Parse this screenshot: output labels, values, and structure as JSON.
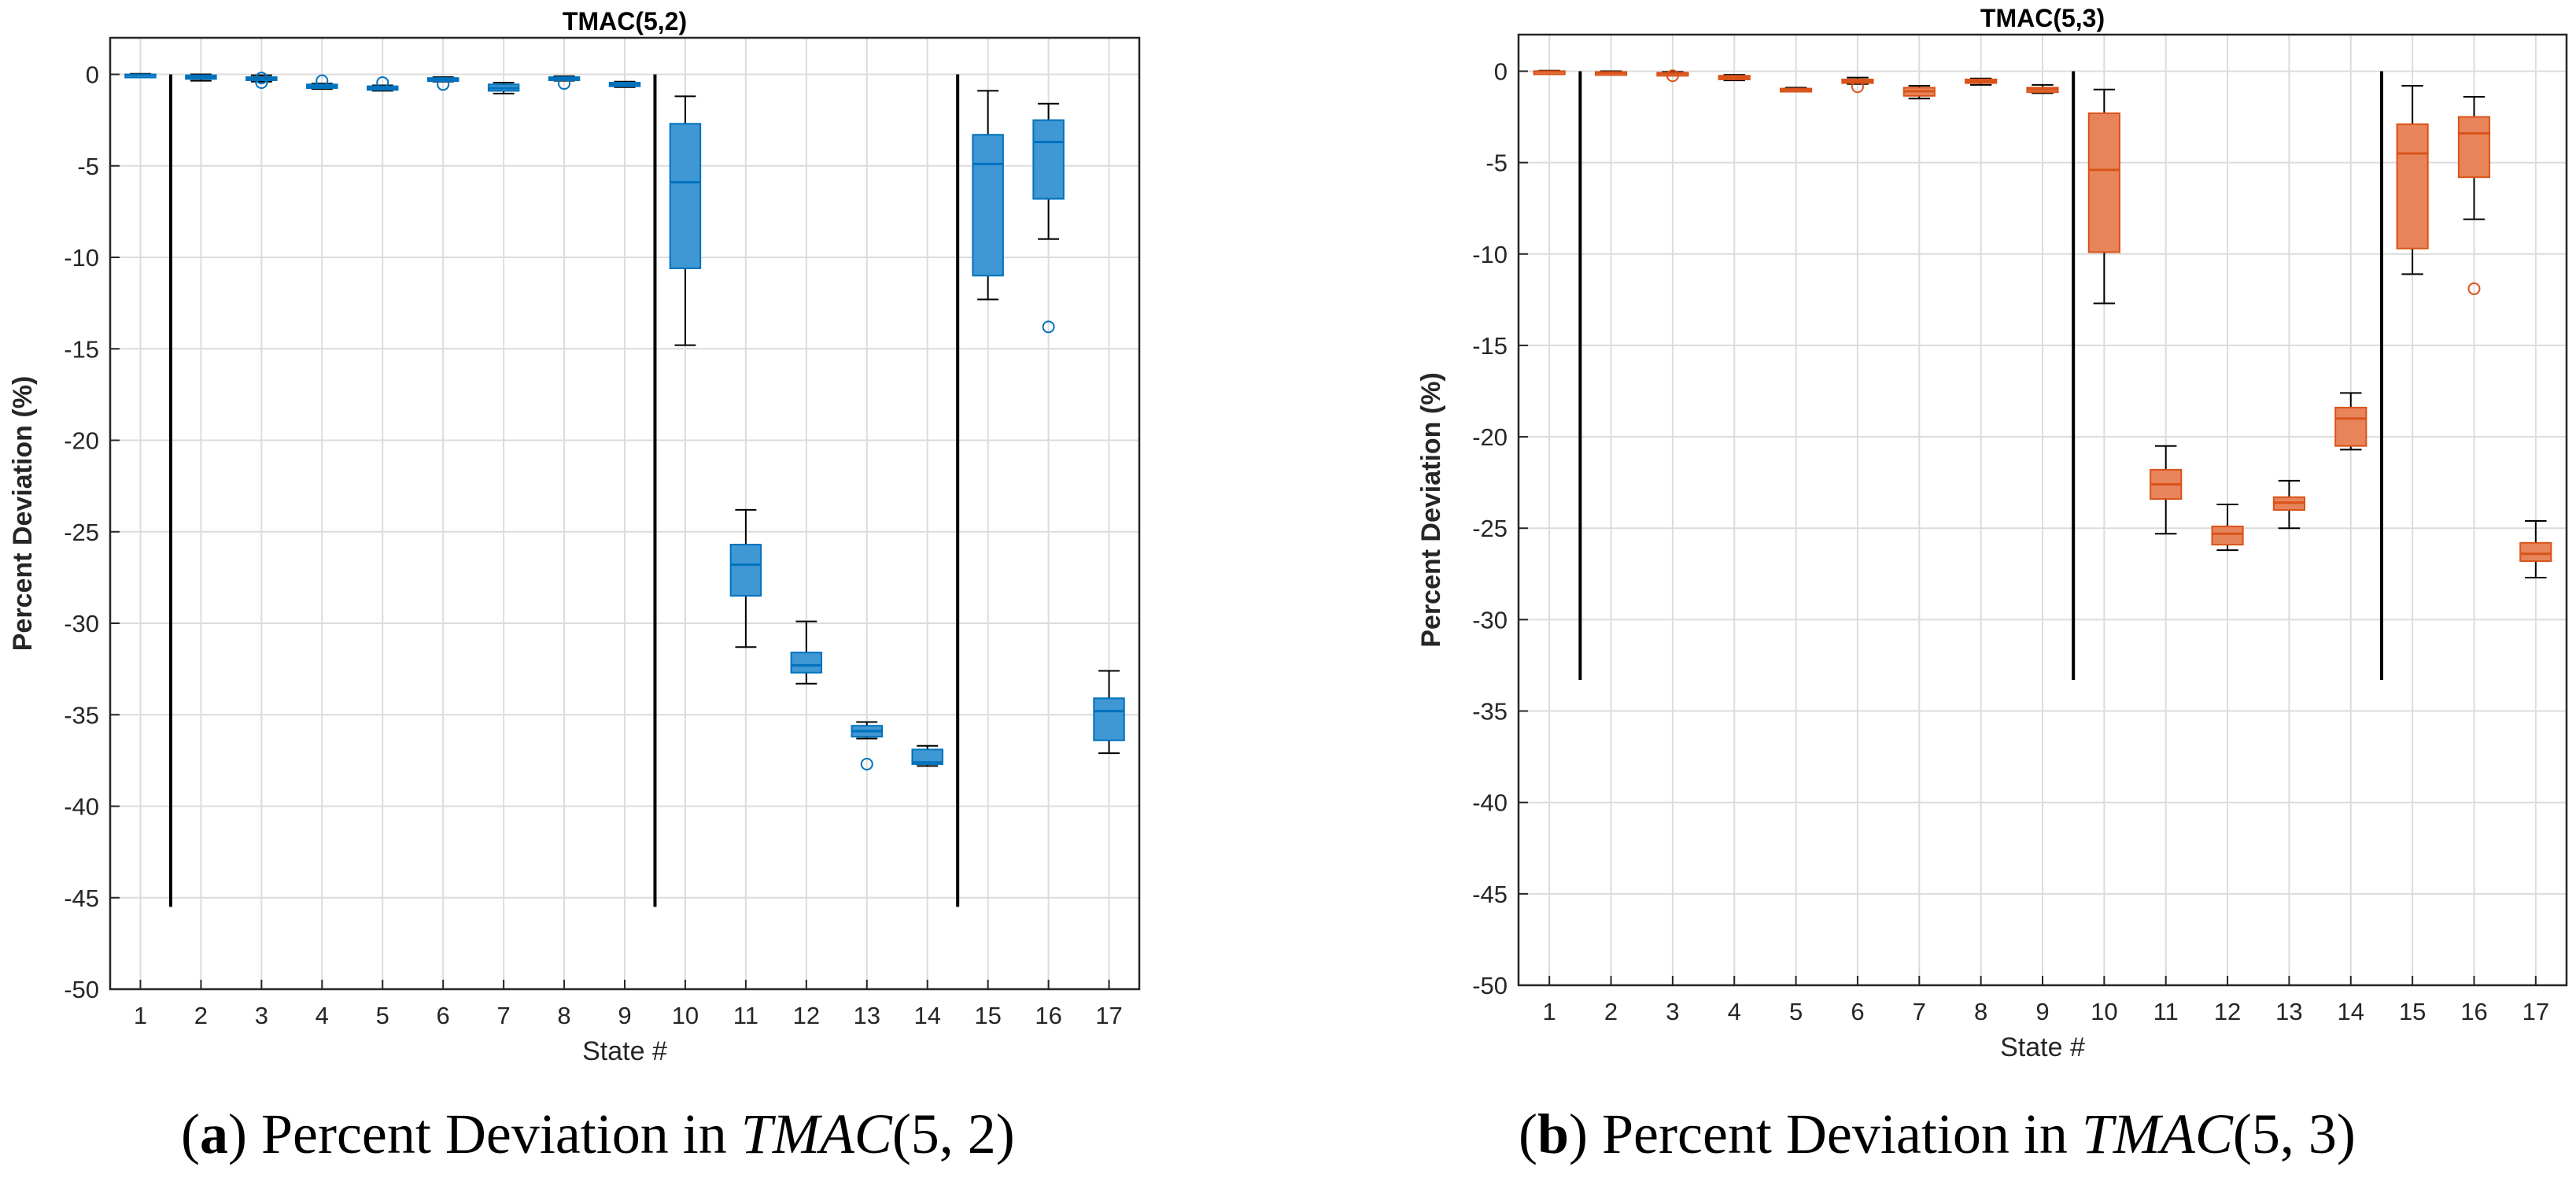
{
  "colors": {
    "series_a": "#0072BD",
    "series_a_fill": "#3F97D3",
    "series_b": "#D95319",
    "series_b_fill": "#E8845A",
    "divider": "#000000",
    "grid": "#dcdcdc"
  },
  "captions": [
    {
      "label": "a",
      "text": " Percent Deviation in ",
      "math": "TMAC",
      "math_args": "(5, 2)"
    },
    {
      "label": "b",
      "text": " Percent Deviation in ",
      "math": "TMAC",
      "math_args": "(5, 3)"
    }
  ],
  "chart_data": [
    {
      "type": "box",
      "title": "TMAC(5,2)",
      "xlabel": "State #",
      "ylabel": "Percent Deviation (%)",
      "ylim": [
        -50,
        2
      ],
      "yticks": [
        0,
        -5,
        -10,
        -15,
        -20,
        -25,
        -30,
        -35,
        -40,
        -45,
        -50
      ],
      "categories": [
        "1",
        "2",
        "3",
        "4",
        "5",
        "6",
        "7",
        "8",
        "9",
        "10",
        "11",
        "12",
        "13",
        "14",
        "15",
        "16",
        "17"
      ],
      "grid": true,
      "dividers": {
        "positions": [
          1.5,
          9.5,
          14.5
        ],
        "ymin": -45.5,
        "ymax": 0
      },
      "boxes": [
        {
          "q1": -0.05,
          "median": -0.02,
          "q3": 0.0,
          "wlo": -0.08,
          "whi": 0.03,
          "outliers": []
        },
        {
          "q1": -0.25,
          "median": -0.15,
          "q3": -0.05,
          "wlo": -0.35,
          "whi": 0.0,
          "outliers": []
        },
        {
          "q1": -0.3,
          "median": -0.22,
          "q3": -0.15,
          "wlo": -0.4,
          "whi": -0.05,
          "outliers": [
            -0.2,
            -0.45
          ]
        },
        {
          "q1": -0.75,
          "median": -0.65,
          "q3": -0.55,
          "wlo": -0.8,
          "whi": -0.5,
          "outliers": [
            -0.35
          ]
        },
        {
          "q1": -0.85,
          "median": -0.75,
          "q3": -0.65,
          "wlo": -0.9,
          "whi": -0.6,
          "outliers": [
            -0.45
          ]
        },
        {
          "q1": -0.35,
          "median": -0.28,
          "q3": -0.2,
          "wlo": -0.4,
          "whi": -0.15,
          "outliers": [
            -0.55
          ]
        },
        {
          "q1": -0.9,
          "median": -0.75,
          "q3": -0.55,
          "wlo": -1.05,
          "whi": -0.45,
          "outliers": []
        },
        {
          "q1": -0.3,
          "median": -0.22,
          "q3": -0.15,
          "wlo": -0.35,
          "whi": -0.1,
          "outliers": [
            -0.5
          ]
        },
        {
          "q1": -0.65,
          "median": -0.55,
          "q3": -0.45,
          "wlo": -0.7,
          "whi": -0.4,
          "outliers": []
        },
        {
          "q1": -10.6,
          "median": -5.9,
          "q3": -2.7,
          "wlo": -14.8,
          "whi": -1.2,
          "outliers": []
        },
        {
          "q1": -28.5,
          "median": -26.8,
          "q3": -25.7,
          "wlo": -31.3,
          "whi": -23.8,
          "outliers": []
        },
        {
          "q1": -32.7,
          "median": -32.3,
          "q3": -31.6,
          "wlo": -33.3,
          "whi": -29.9,
          "outliers": []
        },
        {
          "q1": -36.2,
          "median": -35.9,
          "q3": -35.6,
          "wlo": -36.3,
          "whi": -35.4,
          "outliers": [
            -37.7
          ]
        },
        {
          "q1": -37.7,
          "median": -37.6,
          "q3": -36.9,
          "wlo": -37.8,
          "whi": -36.7,
          "outliers": []
        },
        {
          "q1": -11.0,
          "median": -4.9,
          "q3": -3.3,
          "wlo": -12.3,
          "whi": -0.9,
          "outliers": []
        },
        {
          "q1": -6.8,
          "median": -3.7,
          "q3": -2.5,
          "wlo": -9.0,
          "whi": -1.6,
          "outliers": [
            -13.8
          ]
        },
        {
          "q1": -36.4,
          "median": -34.8,
          "q3": -34.1,
          "wlo": -37.1,
          "whi": -32.6,
          "outliers": []
        }
      ]
    },
    {
      "type": "box",
      "title": "TMAC(5,3)",
      "xlabel": "State #",
      "ylabel": "Percent Deviation (%)",
      "ylim": [
        -50,
        2
      ],
      "yticks": [
        0,
        -5,
        -10,
        -15,
        -20,
        -25,
        -30,
        -35,
        -40,
        -45,
        -50
      ],
      "categories": [
        "1",
        "2",
        "3",
        "4",
        "5",
        "6",
        "7",
        "8",
        "9",
        "10",
        "11",
        "12",
        "13",
        "14",
        "15",
        "16",
        "17"
      ],
      "grid": true,
      "dividers": {
        "positions": [
          1.5,
          9.5,
          14.5
        ],
        "ymin": -33.3,
        "ymax": 0
      },
      "boxes": [
        {
          "q1": -0.05,
          "median": -0.02,
          "q3": 0.0,
          "wlo": -0.08,
          "whi": 0.03,
          "outliers": []
        },
        {
          "q1": -0.12,
          "median": -0.08,
          "q3": -0.04,
          "wlo": -0.15,
          "whi": 0.0,
          "outliers": []
        },
        {
          "q1": -0.18,
          "median": -0.12,
          "q3": -0.08,
          "wlo": -0.22,
          "whi": -0.04,
          "outliers": [
            -0.25
          ]
        },
        {
          "q1": -0.45,
          "median": -0.35,
          "q3": -0.25,
          "wlo": -0.5,
          "whi": -0.2,
          "outliers": []
        },
        {
          "q1": -1.05,
          "median": -1.0,
          "q3": -0.95,
          "wlo": -1.1,
          "whi": -0.9,
          "outliers": []
        },
        {
          "q1": -0.65,
          "median": -0.55,
          "q3": -0.45,
          "wlo": -0.7,
          "whi": -0.35,
          "outliers": [
            -0.85
          ]
        },
        {
          "q1": -1.35,
          "median": -1.1,
          "q3": -0.9,
          "wlo": -1.5,
          "whi": -0.8,
          "outliers": []
        },
        {
          "q1": -0.65,
          "median": -0.55,
          "q3": -0.45,
          "wlo": -0.75,
          "whi": -0.4,
          "outliers": []
        },
        {
          "q1": -1.15,
          "median": -1.0,
          "q3": -0.9,
          "wlo": -1.2,
          "whi": -0.75,
          "outliers": []
        },
        {
          "q1": -9.9,
          "median": -5.4,
          "q3": -2.3,
          "wlo": -12.7,
          "whi": -1.0,
          "outliers": []
        },
        {
          "q1": -23.4,
          "median": -22.6,
          "q3": -21.8,
          "wlo": -25.3,
          "whi": -20.5,
          "outliers": []
        },
        {
          "q1": -25.9,
          "median": -25.3,
          "q3": -24.9,
          "wlo": -26.2,
          "whi": -23.7,
          "outliers": []
        },
        {
          "q1": -24.0,
          "median": -23.6,
          "q3": -23.3,
          "wlo": -25.0,
          "whi": -22.4,
          "outliers": []
        },
        {
          "q1": -20.5,
          "median": -19.0,
          "q3": -18.4,
          "wlo": -20.7,
          "whi": -17.6,
          "outliers": []
        },
        {
          "q1": -9.7,
          "median": -4.5,
          "q3": -2.9,
          "wlo": -11.1,
          "whi": -0.8,
          "outliers": []
        },
        {
          "q1": -5.8,
          "median": -3.4,
          "q3": -2.5,
          "wlo": -8.1,
          "whi": -1.4,
          "outliers": [
            -11.9
          ]
        },
        {
          "q1": -26.8,
          "median": -26.4,
          "q3": -25.8,
          "wlo": -27.7,
          "whi": -24.6,
          "outliers": []
        }
      ]
    }
  ]
}
